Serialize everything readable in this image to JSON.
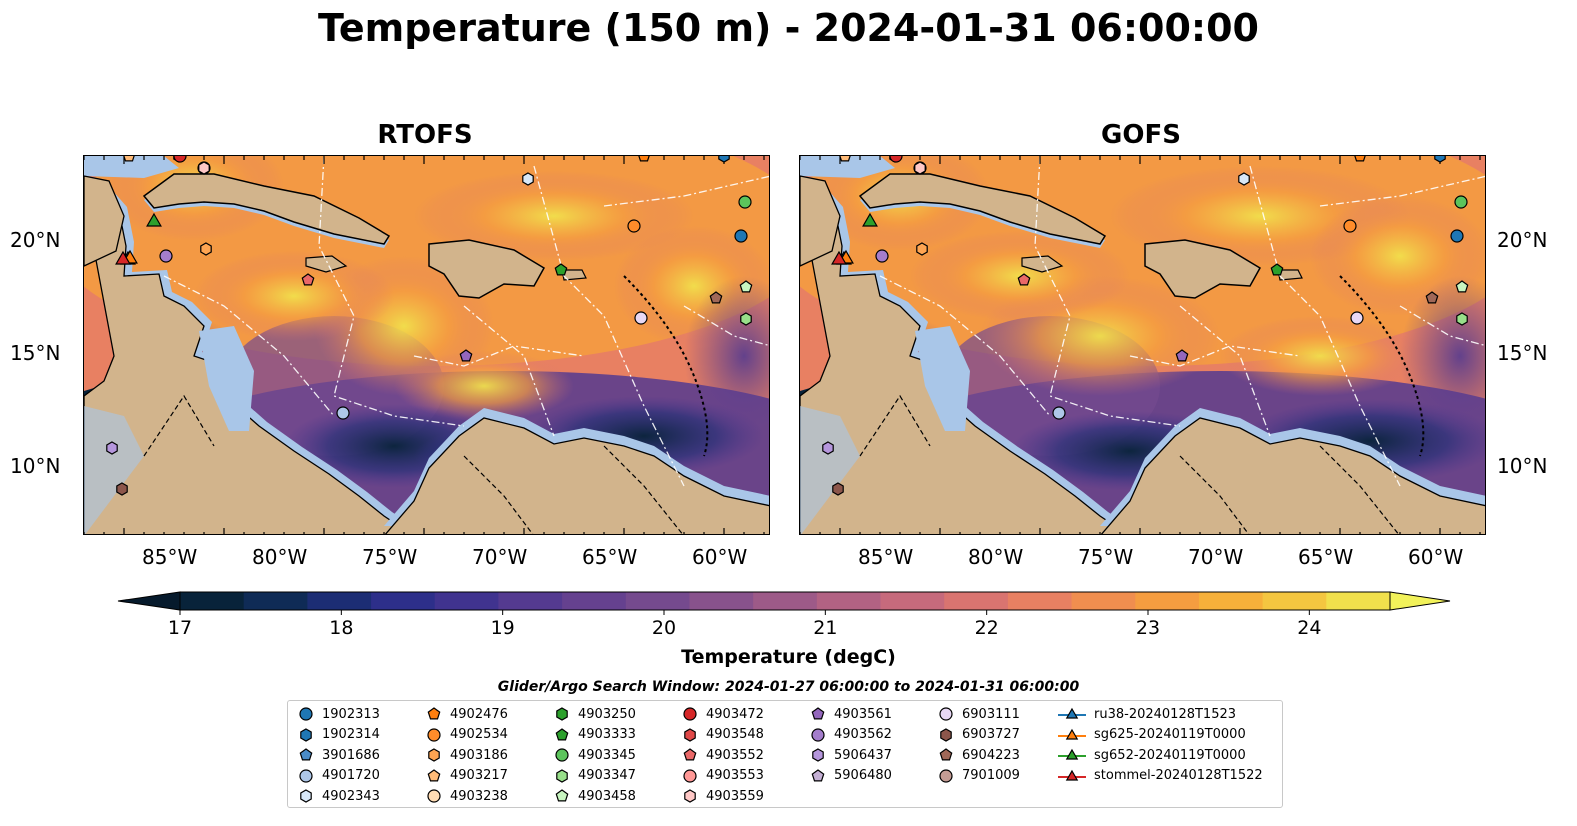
{
  "title": "Temperature (150 m) - 2024-01-31 06:00:00",
  "panels": [
    {
      "title": "RTOFS"
    },
    {
      "title": "GOFS"
    }
  ],
  "lat_labels": [
    "20°N",
    "15°N",
    "10°N"
  ],
  "lon_labels": [
    "85°W",
    "80°W",
    "75°W",
    "70°W",
    "65°W",
    "60°W"
  ],
  "colorbar": {
    "label": "Temperature (degC)",
    "ticks": [
      "17",
      "18",
      "19",
      "20",
      "21",
      "22",
      "23",
      "24"
    ],
    "min": 16.75,
    "max": 24.5,
    "colors": [
      "#08233a",
      "#0f2b56",
      "#1c2d74",
      "#2d2f8a",
      "#40338f",
      "#543a90",
      "#65418f",
      "#754a8e",
      "#88528c",
      "#9d5a88",
      "#b26283",
      "#c66a7c",
      "#d97470",
      "#e88062",
      "#f08e4f",
      "#f59d40",
      "#f6b03a",
      "#f4c640",
      "#f1e04c"
    ],
    "over_color": "#f2f25a",
    "under_color": "#061a2c"
  },
  "map_colors": {
    "land": "#d2b48c",
    "shelf": "#a9c6e8"
  },
  "legend": {
    "search_window": "Glider/Argo Search Window: 2024-01-27 06:00:00 to 2024-01-31 06:00:00",
    "items": [
      {
        "label": "1902313",
        "marker": "circle",
        "color": "#1f77b4"
      },
      {
        "label": "1902314",
        "marker": "hexagon",
        "color": "#1f77b4"
      },
      {
        "label": "3901686",
        "marker": "pentagon",
        "color": "#4a8cc8"
      },
      {
        "label": "4901720",
        "marker": "circle",
        "color": "#aec7e8"
      },
      {
        "label": "4902343",
        "marker": "hexagon",
        "color": "#d8e8f8"
      },
      {
        "label": "4902476",
        "marker": "pentagon",
        "color": "#ff7f0e"
      },
      {
        "label": "4902534",
        "marker": "circle",
        "color": "#ff8c2a"
      },
      {
        "label": "4903186",
        "marker": "hexagon",
        "color": "#ffa552"
      },
      {
        "label": "4903217",
        "marker": "pentagon",
        "color": "#ffbb78"
      },
      {
        "label": "4903238",
        "marker": "circle",
        "color": "#ffdcb4"
      },
      {
        "label": "4903250",
        "marker": "hexagon",
        "color": "#2ca02c"
      },
      {
        "label": "4903333",
        "marker": "pentagon",
        "color": "#2ca02c"
      },
      {
        "label": "4903345",
        "marker": "circle",
        "color": "#5cc45c"
      },
      {
        "label": "4903347",
        "marker": "hexagon",
        "color": "#98df8a"
      },
      {
        "label": "4903458",
        "marker": "pentagon",
        "color": "#c8f5c0"
      },
      {
        "label": "4903472",
        "marker": "circle",
        "color": "#d62728"
      },
      {
        "label": "4903548",
        "marker": "hexagon",
        "color": "#e04848"
      },
      {
        "label": "4903552",
        "marker": "pentagon",
        "color": "#ea6868"
      },
      {
        "label": "4903553",
        "marker": "circle",
        "color": "#ff9896"
      },
      {
        "label": "4903559",
        "marker": "hexagon",
        "color": "#ffc8c6"
      },
      {
        "label": "4903561",
        "marker": "pentagon",
        "color": "#9467bd"
      },
      {
        "label": "4903562",
        "marker": "circle",
        "color": "#a47dcc"
      },
      {
        "label": "5906437",
        "marker": "hexagon",
        "color": "#b596dc"
      },
      {
        "label": "5906480",
        "marker": "pentagon",
        "color": "#c5b0d5"
      },
      {
        "label": "6903111",
        "marker": "circle",
        "color": "#e8d8f5"
      },
      {
        "label": "6903727",
        "marker": "hexagon",
        "color": "#8c564b"
      },
      {
        "label": "6904223",
        "marker": "pentagon",
        "color": "#a06858"
      },
      {
        "label": "7901009",
        "marker": "circle",
        "color": "#c49c94"
      },
      {
        "label": "ru38-20240128T1523",
        "marker": "triangle",
        "color": "#1f77b4"
      },
      {
        "label": "sg625-20240119T0000",
        "marker": "triangle",
        "color": "#ff7f0e"
      },
      {
        "label": "sg652-20240119T0000",
        "marker": "triangle",
        "color": "#2ca02c"
      },
      {
        "label": "stommel-20240128T1522",
        "marker": "triangle",
        "color": "#d62728"
      }
    ]
  }
}
